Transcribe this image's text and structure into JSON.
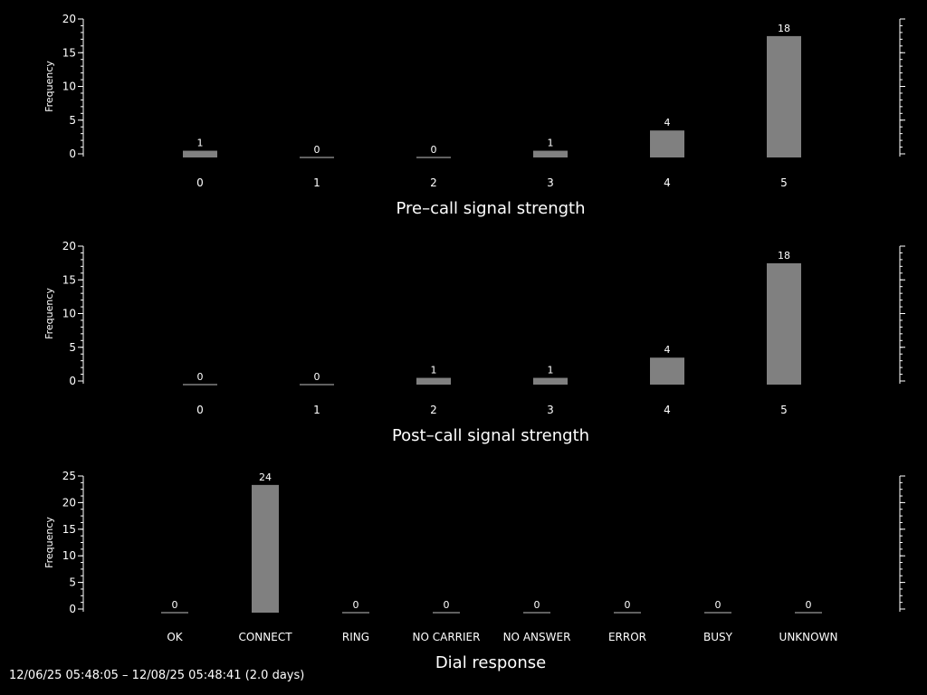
{
  "colors": {
    "background": "#000000",
    "foreground": "#ffffff",
    "bar": "#808080"
  },
  "footer_text": "12/06/25 05:48:05 – 12/08/25 05:48:41 (2.0 days)",
  "chart_data": [
    {
      "type": "bar",
      "xlabel": "Pre–call signal strength",
      "ylabel": "Frequency",
      "categories": [
        "0",
        "1",
        "2",
        "3",
        "4",
        "5"
      ],
      "values": [
        1,
        0,
        0,
        1,
        4,
        18
      ],
      "value_labels": [
        "1",
        "0",
        "0",
        "1",
        "4",
        "18"
      ],
      "ylim": [
        0,
        20
      ],
      "yticks": [
        0,
        5,
        10,
        15,
        20
      ],
      "ytick_labels": [
        "0",
        "5",
        "10",
        "15",
        "20"
      ],
      "grid": false
    },
    {
      "type": "bar",
      "xlabel": "Post–call signal strength",
      "ylabel": "Frequency",
      "categories": [
        "0",
        "1",
        "2",
        "3",
        "4",
        "5"
      ],
      "values": [
        0,
        0,
        1,
        1,
        4,
        18
      ],
      "value_labels": [
        "0",
        "0",
        "1",
        "1",
        "4",
        "18"
      ],
      "ylim": [
        0,
        20
      ],
      "yticks": [
        0,
        5,
        10,
        15,
        20
      ],
      "ytick_labels": [
        "0",
        "5",
        "10",
        "15",
        "20"
      ],
      "grid": false
    },
    {
      "type": "bar",
      "xlabel": "Dial response",
      "ylabel": "Frequency",
      "categories": [
        "OK",
        "CONNECT",
        "RING",
        "NO CARRIER",
        "NO ANSWER",
        "ERROR",
        "BUSY",
        "UNKNOWN"
      ],
      "values": [
        0,
        24,
        0,
        0,
        0,
        0,
        0,
        0
      ],
      "value_labels": [
        "0",
        "24",
        "0",
        "0",
        "0",
        "0",
        "0",
        "0"
      ],
      "ylim": [
        0,
        25
      ],
      "yticks": [
        0,
        5,
        10,
        15,
        20,
        25
      ],
      "ytick_labels": [
        "0",
        "5",
        "10",
        "15",
        "20",
        "25"
      ],
      "grid": false
    }
  ]
}
